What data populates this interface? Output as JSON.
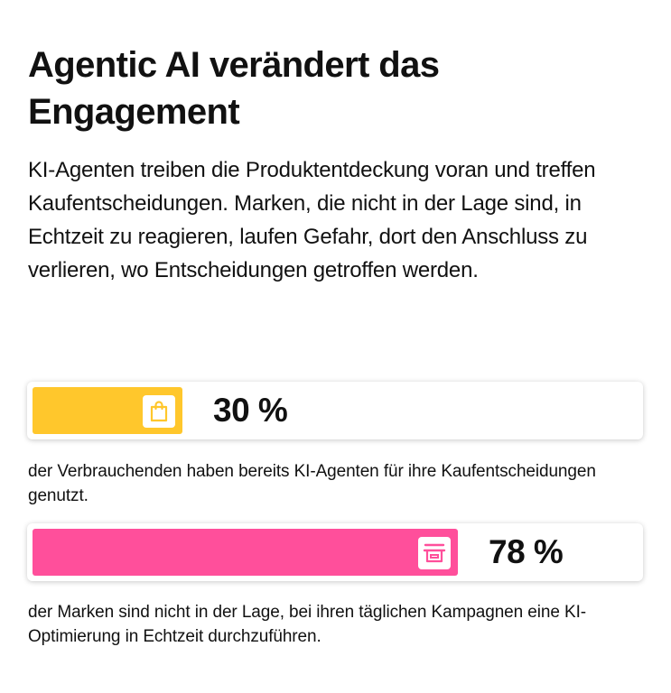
{
  "title": "Agentic AI verändert das Engagement",
  "subtitle": "KI-Agenten treiben die Produktentdeckung voran und treffen Kaufentscheidungen. Marken, die nicht in der Lage sind, in Echtzeit zu reagieren, laufen Gefahr, dort den Anschluss zu verlieren, wo Entscheidungen getroffen werden.",
  "chart_data": {
    "type": "bar",
    "orientation": "horizontal",
    "title": "",
    "xlabel": "",
    "ylabel": "",
    "xlim": [
      0,
      100
    ],
    "grid": false,
    "series": [
      {
        "value": 30,
        "value_label": "30 %",
        "description": "der Verbrauchenden haben bereits KI-Agenten für ihre Kaufentscheidungen genutzt.",
        "color": "#FFC72C",
        "icon": "shopping-bag-icon"
      },
      {
        "value": 78,
        "value_label": "78 %",
        "description": "der Marken sind nicht in der Lage, bei ihren täglichen Kampagnen eine KI-Optimierung in Echtzeit durchzuführen.",
        "color": "#FF4F9B",
        "icon": "storefront-icon"
      }
    ]
  }
}
